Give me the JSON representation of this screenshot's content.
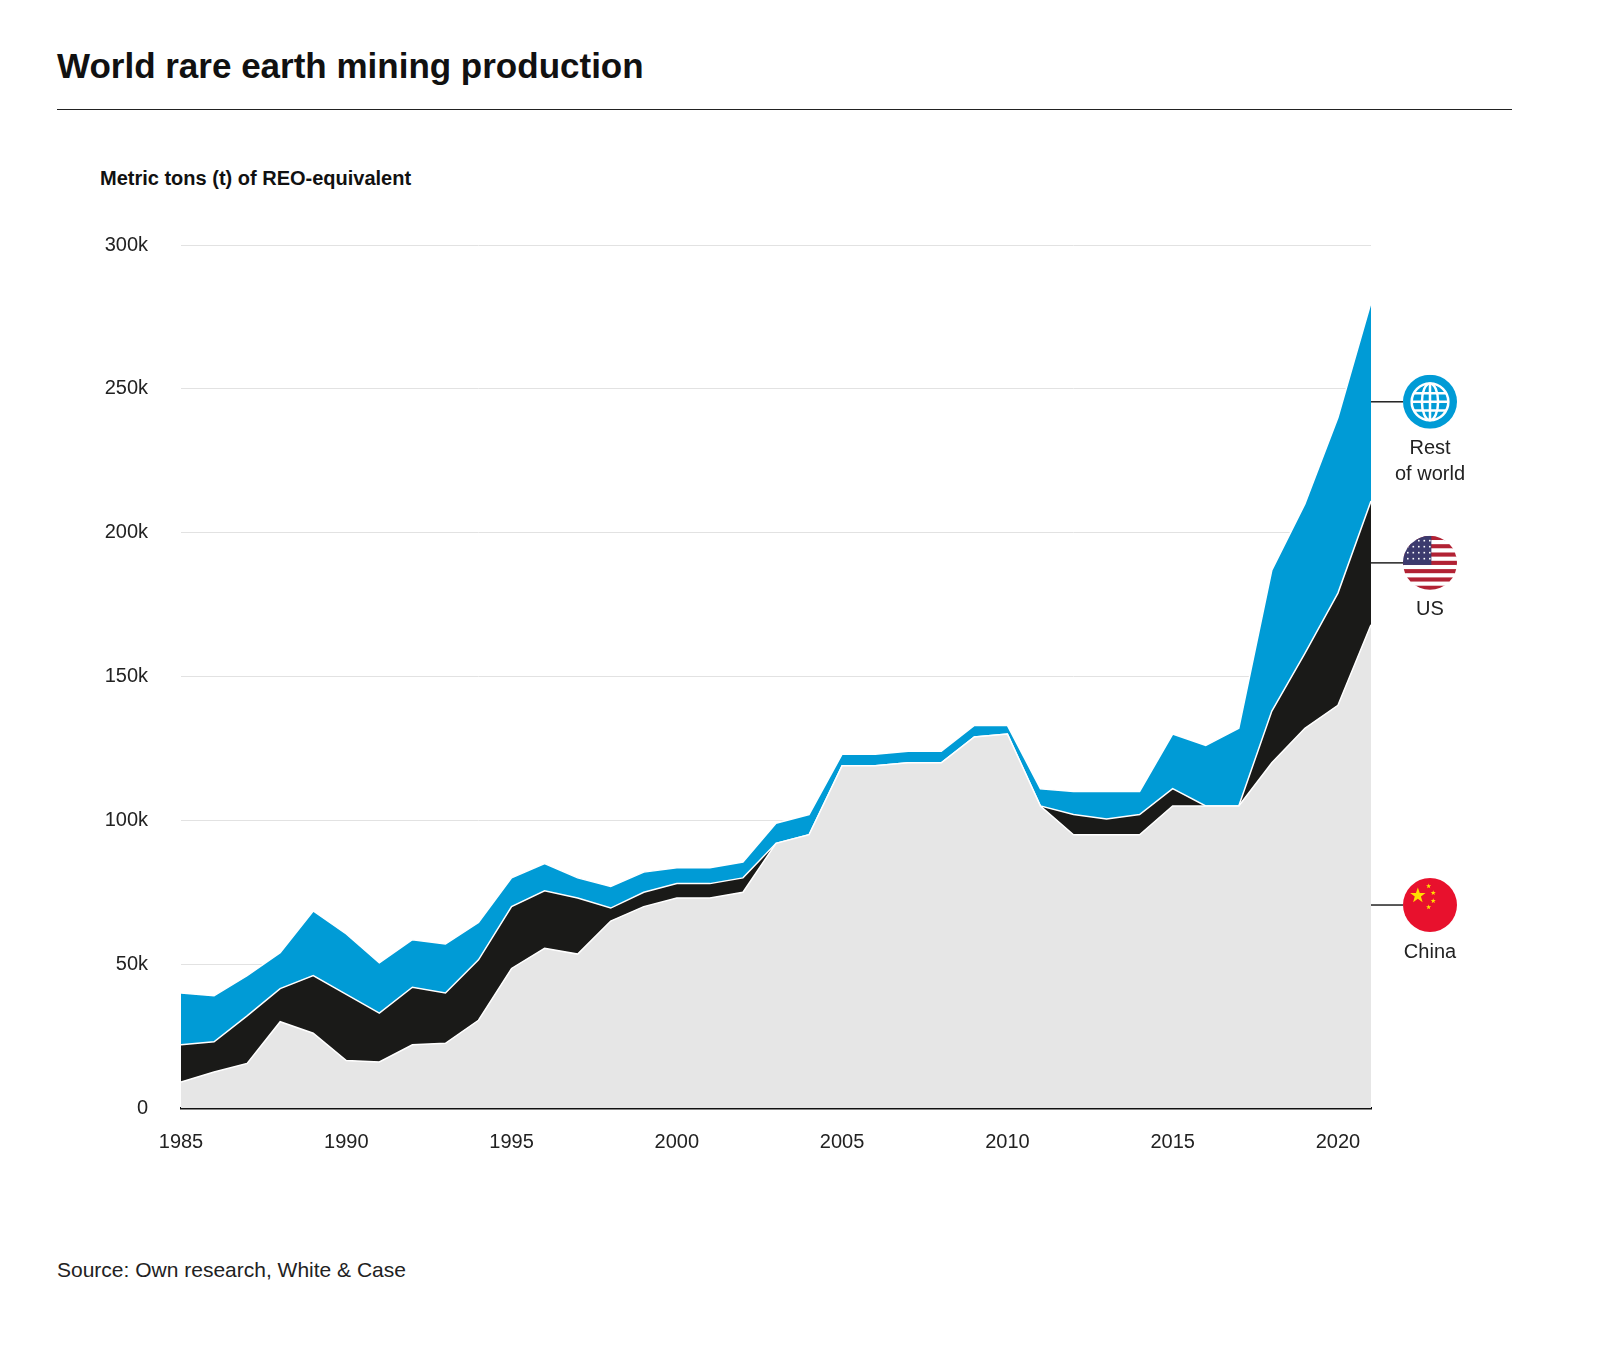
{
  "chart_data": {
    "type": "area",
    "title": "World rare earth mining production",
    "y_label": "Metric tons (t) of REO-equivalent",
    "source": "Source: Own research, White & Case",
    "stacked": true,
    "grid": true,
    "legend": "right",
    "x": [
      1985,
      1986,
      1987,
      1988,
      1989,
      1990,
      1991,
      1992,
      1993,
      1994,
      1995,
      1996,
      1997,
      1998,
      1999,
      2000,
      2001,
      2002,
      2003,
      2004,
      2005,
      2006,
      2007,
      2008,
      2009,
      2010,
      2011,
      2012,
      2013,
      2014,
      2015,
      2016,
      2017,
      2018,
      2019,
      2020,
      2021
    ],
    "xlim": [
      1985,
      2021
    ],
    "xticks": [
      1985,
      1990,
      1995,
      2000,
      2005,
      2010,
      2015,
      2020
    ],
    "ylim": [
      0,
      300000
    ],
    "yticks": [
      0,
      {
        "value": 50000,
        "label": "50k"
      },
      {
        "value": 100000,
        "label": "100k"
      },
      {
        "value": 150000,
        "label": "150k"
      },
      {
        "value": 200000,
        "label": "200k"
      },
      {
        "value": 250000,
        "label": "250k"
      },
      {
        "value": 300000,
        "label": "300k"
      }
    ],
    "series": [
      {
        "name": "China",
        "color": "#e6e6e6",
        "values": [
          9000,
          12500,
          15500,
          30000,
          26000,
          16500,
          16000,
          22000,
          22500,
          30500,
          48500,
          55500,
          53500,
          65000,
          70000,
          73000,
          73000,
          75000,
          92000,
          95000,
          119000,
          119000,
          120000,
          120000,
          129000,
          130000,
          105000,
          95000,
          95000,
          95000,
          105000,
          105000,
          105000,
          120000,
          132000,
          140000,
          168000
        ]
      },
      {
        "name": "US",
        "color": "#1a1a18",
        "values": [
          13000,
          10500,
          16500,
          11500,
          20000,
          23000,
          17000,
          20000,
          17500,
          21000,
          21500,
          20000,
          19500,
          4500,
          5000,
          5000,
          5000,
          5000,
          0,
          0,
          0,
          0,
          0,
          0,
          0,
          0,
          0,
          7000,
          5500,
          7000,
          6000,
          0,
          0,
          18000,
          26000,
          39000,
          43000
        ]
      },
      {
        "name": "Rest of world",
        "color": "#009bd6",
        "values": [
          18000,
          16000,
          14000,
          12500,
          22500,
          21000,
          17500,
          16500,
          17000,
          13000,
          10000,
          9500,
          7000,
          7500,
          7000,
          5500,
          5500,
          5500,
          7000,
          7000,
          4000,
          4000,
          4000,
          4000,
          4000,
          3000,
          6000,
          8000,
          9500,
          8000,
          19000,
          21000,
          27000,
          49000,
          52000,
          61000,
          69000
        ]
      }
    ]
  }
}
